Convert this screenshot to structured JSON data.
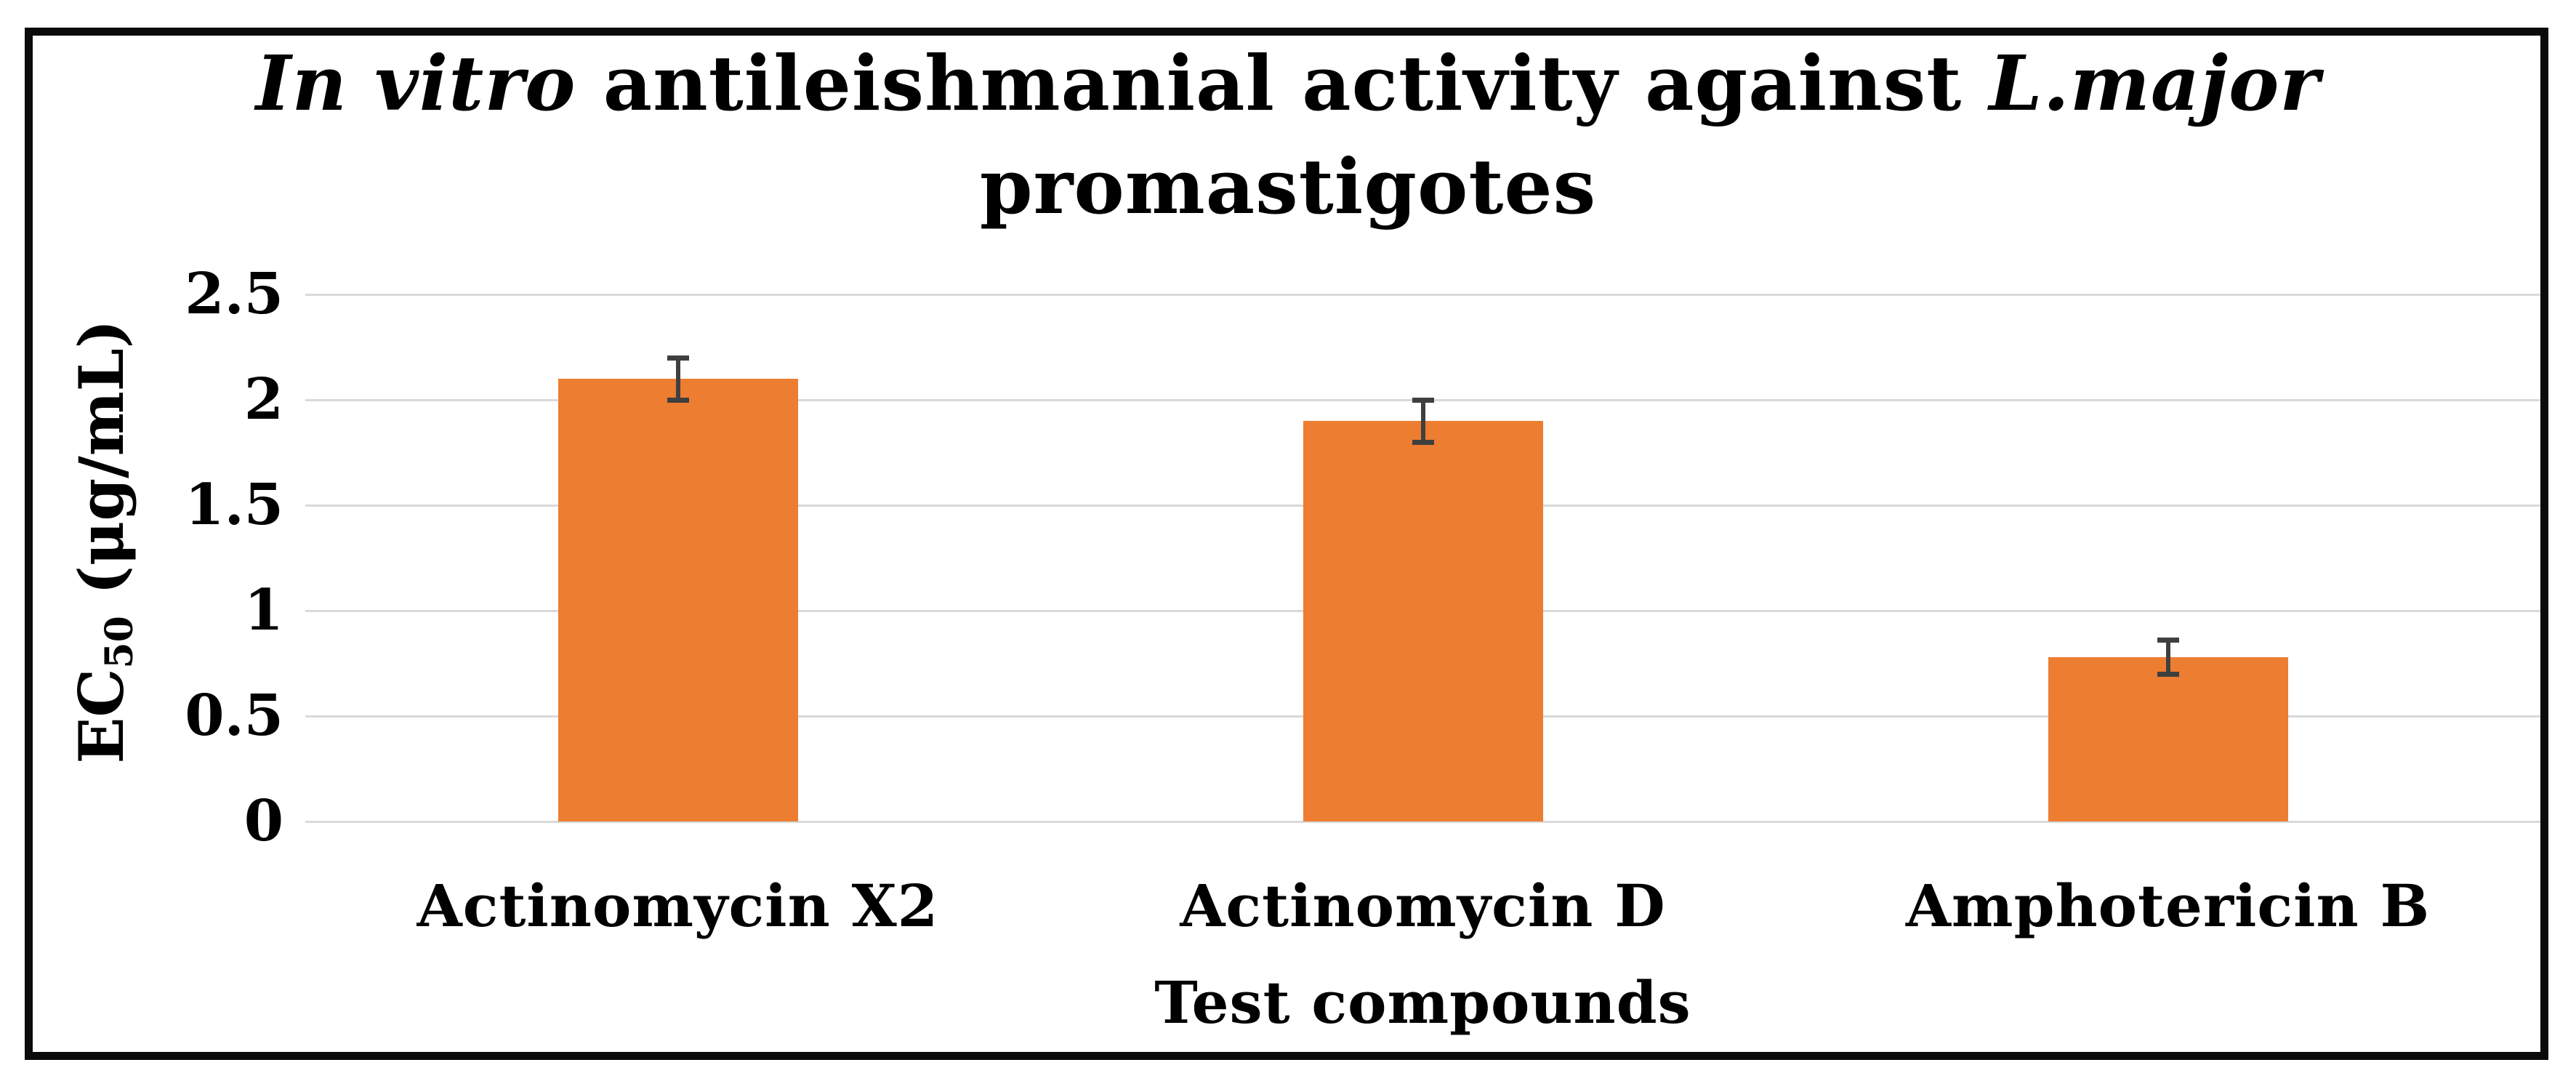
{
  "figure": {
    "title": {
      "italic_lead": "In vitro",
      "regular_mid": " antileishmanial activity against ",
      "italic_tail": "L.major",
      "line2": "promastigotes"
    },
    "y_axis": {
      "label_main": "EC",
      "label_sub": "50",
      "label_unit": " (μg/mL)",
      "ticks": [
        "2.5",
        "2",
        "1.5",
        "1",
        "0.5",
        "0"
      ]
    },
    "x_axis": {
      "title": "Test compounds"
    }
  },
  "chart_data": {
    "type": "bar",
    "title": "In vitro antileishmanial activity against L.major promastigotes",
    "categories": [
      "Actinomycin X2",
      "Actinomycin D",
      "Amphotericin B"
    ],
    "values": [
      2.1,
      1.9,
      0.78
    ],
    "error_bars": [
      0.1,
      0.1,
      0.08
    ],
    "xlabel": "Test compounds",
    "ylabel": "EC50 (μg/mL)",
    "ylim": [
      0,
      2.5
    ],
    "ytick_step": 0.5,
    "grid": true,
    "legend": false,
    "bar_color": "#ED7D31",
    "error_color": "#3f3f3f",
    "gridline_color": "#d9d9d9",
    "frame_color": "#0b0b0b"
  }
}
